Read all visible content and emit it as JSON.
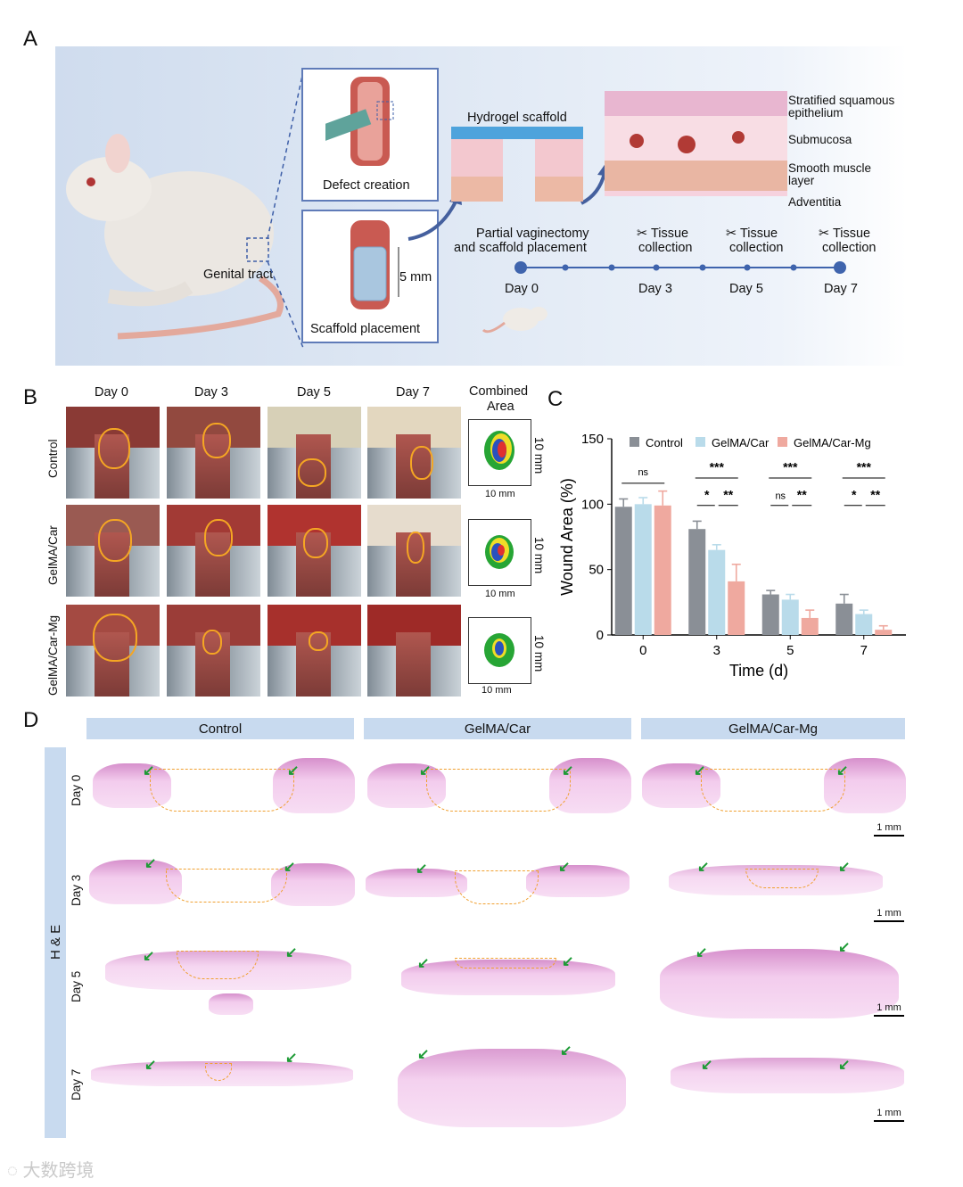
{
  "panel_labels": {
    "a": "A",
    "b": "B",
    "c": "C",
    "d": "D"
  },
  "panelA": {
    "genital_tract": "Genital tract",
    "defect_creation": "Defect creation",
    "scaffold_placement": "Scaffold placement",
    "five_mm": "5 mm",
    "hydrogel_scaffold": "Hydrogel scaffold",
    "layers": [
      "Stratified squamous",
      "epithelium",
      "Submucosa",
      "Smooth muscle",
      "layer",
      "Adventitia"
    ],
    "procedure_line1": "Partial vaginectomy",
    "procedure_line2": "and scaffold placement",
    "tissue": "Tissue",
    "collection": "collection",
    "days": [
      "Day 0",
      "Day 3",
      "Day 5",
      "Day 7"
    ]
  },
  "panelB": {
    "columns": [
      "Day 0",
      "Day 3",
      "Day 5",
      "Day 7"
    ],
    "combined_area_line1": "Combined",
    "combined_area_line2": "Area",
    "rows": [
      "Control",
      "GelMA/Car",
      "GelMA/Car-Mg"
    ],
    "scale": "10 mm"
  },
  "chart_data": {
    "type": "bar",
    "title": "",
    "xlabel": "Time (d)",
    "ylabel": "Wound Area (%)",
    "ylim": [
      0,
      150
    ],
    "yticks": [
      "0",
      "50",
      "100",
      "150"
    ],
    "categories": [
      "0",
      "3",
      "5",
      "7"
    ],
    "series": [
      {
        "name": "Control",
        "color": "#8a8f96",
        "values": [
          98,
          81,
          31,
          24
        ],
        "errors": [
          6,
          6,
          3,
          7
        ]
      },
      {
        "name": "GelMA/Car",
        "color": "#b9dbea",
        "values": [
          100,
          65,
          27,
          16
        ],
        "errors": [
          5,
          4,
          4,
          3
        ]
      },
      {
        "name": "GelMA/Car-Mg",
        "color": "#efa99f",
        "values": [
          99,
          41,
          13,
          4
        ],
        "errors": [
          11,
          13,
          6,
          3
        ]
      }
    ],
    "significance": {
      "day0": [
        "ns"
      ],
      "day3": [
        "***",
        "*",
        "**"
      ],
      "day5": [
        "***",
        "ns",
        "**"
      ],
      "day7": [
        "***",
        "*",
        "**"
      ]
    },
    "legend_position": "top"
  },
  "panelD": {
    "groups": [
      "Control",
      "GelMA/Car",
      "GelMA/Car-Mg"
    ],
    "stain": "H & E",
    "days": [
      "Day 0",
      "Day 3",
      "Day 5",
      "Day 7"
    ],
    "scale": "1 mm"
  },
  "watermark": "大数跨境"
}
